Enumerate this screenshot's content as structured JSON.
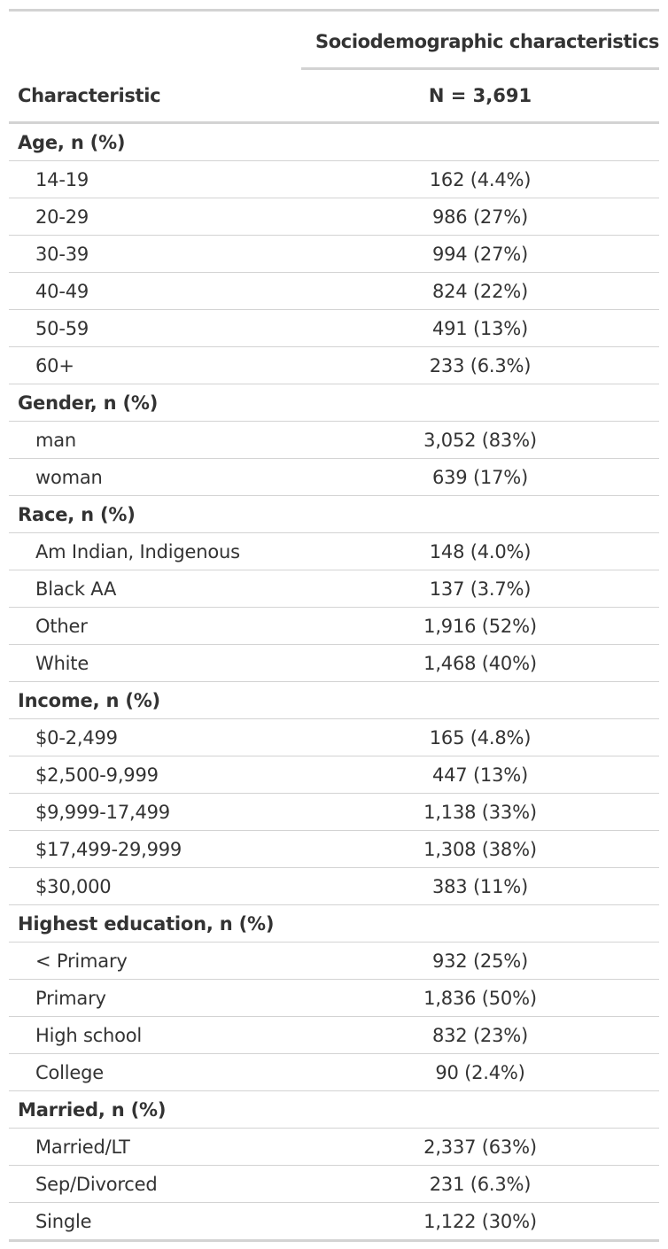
{
  "table": {
    "spanner": "Sociodemographic characteristics",
    "header": {
      "characteristic": "Characteristic",
      "n": "N = 3,691"
    },
    "rows": [
      {
        "label": "Age, n (%)",
        "value": "",
        "group": true
      },
      {
        "label": "14-19",
        "value": "162 (4.4%)",
        "group": false
      },
      {
        "label": "20-29",
        "value": "986 (27%)",
        "group": false
      },
      {
        "label": "30-39",
        "value": "994 (27%)",
        "group": false
      },
      {
        "label": "40-49",
        "value": "824 (22%)",
        "group": false
      },
      {
        "label": "50-59",
        "value": "491 (13%)",
        "group": false
      },
      {
        "label": "60+",
        "value": "233 (6.3%)",
        "group": false
      },
      {
        "label": "Gender, n (%)",
        "value": "",
        "group": true
      },
      {
        "label": "man",
        "value": "3,052 (83%)",
        "group": false
      },
      {
        "label": "woman",
        "value": "639 (17%)",
        "group": false
      },
      {
        "label": "Race, n (%)",
        "value": "",
        "group": true
      },
      {
        "label": "Am Indian, Indigenous",
        "value": "148 (4.0%)",
        "group": false
      },
      {
        "label": "Black AA",
        "value": "137 (3.7%)",
        "group": false
      },
      {
        "label": "Other",
        "value": "1,916 (52%)",
        "group": false
      },
      {
        "label": "White",
        "value": "1,468 (40%)",
        "group": false
      },
      {
        "label": "Income, n (%)",
        "value": "",
        "group": true
      },
      {
        "label": "$0-2,499",
        "value": "165 (4.8%)",
        "group": false
      },
      {
        "label": "$2,500-9,999",
        "value": "447 (13%)",
        "group": false
      },
      {
        "label": "$9,999-17,499",
        "value": "1,138 (33%)",
        "group": false
      },
      {
        "label": "$17,499-29,999",
        "value": "1,308 (38%)",
        "group": false
      },
      {
        "label": "$30,000",
        "value": "383 (11%)",
        "group": false
      },
      {
        "label": "Highest education, n (%)",
        "value": "",
        "group": true
      },
      {
        "label": "< Primary",
        "value": "932 (25%)",
        "group": false
      },
      {
        "label": "Primary",
        "value": "1,836 (50%)",
        "group": false
      },
      {
        "label": "High school",
        "value": "832 (23%)",
        "group": false
      },
      {
        "label": "College",
        "value": "90 (2.4%)",
        "group": false
      },
      {
        "label": "Married, n (%)",
        "value": "",
        "group": true
      },
      {
        "label": "Married/LT",
        "value": "2,337 (63%)",
        "group": false
      },
      {
        "label": "Sep/Divorced",
        "value": "231 (6.3%)",
        "group": false
      },
      {
        "label": "Single",
        "value": "1,122 (30%)",
        "group": false
      }
    ]
  }
}
